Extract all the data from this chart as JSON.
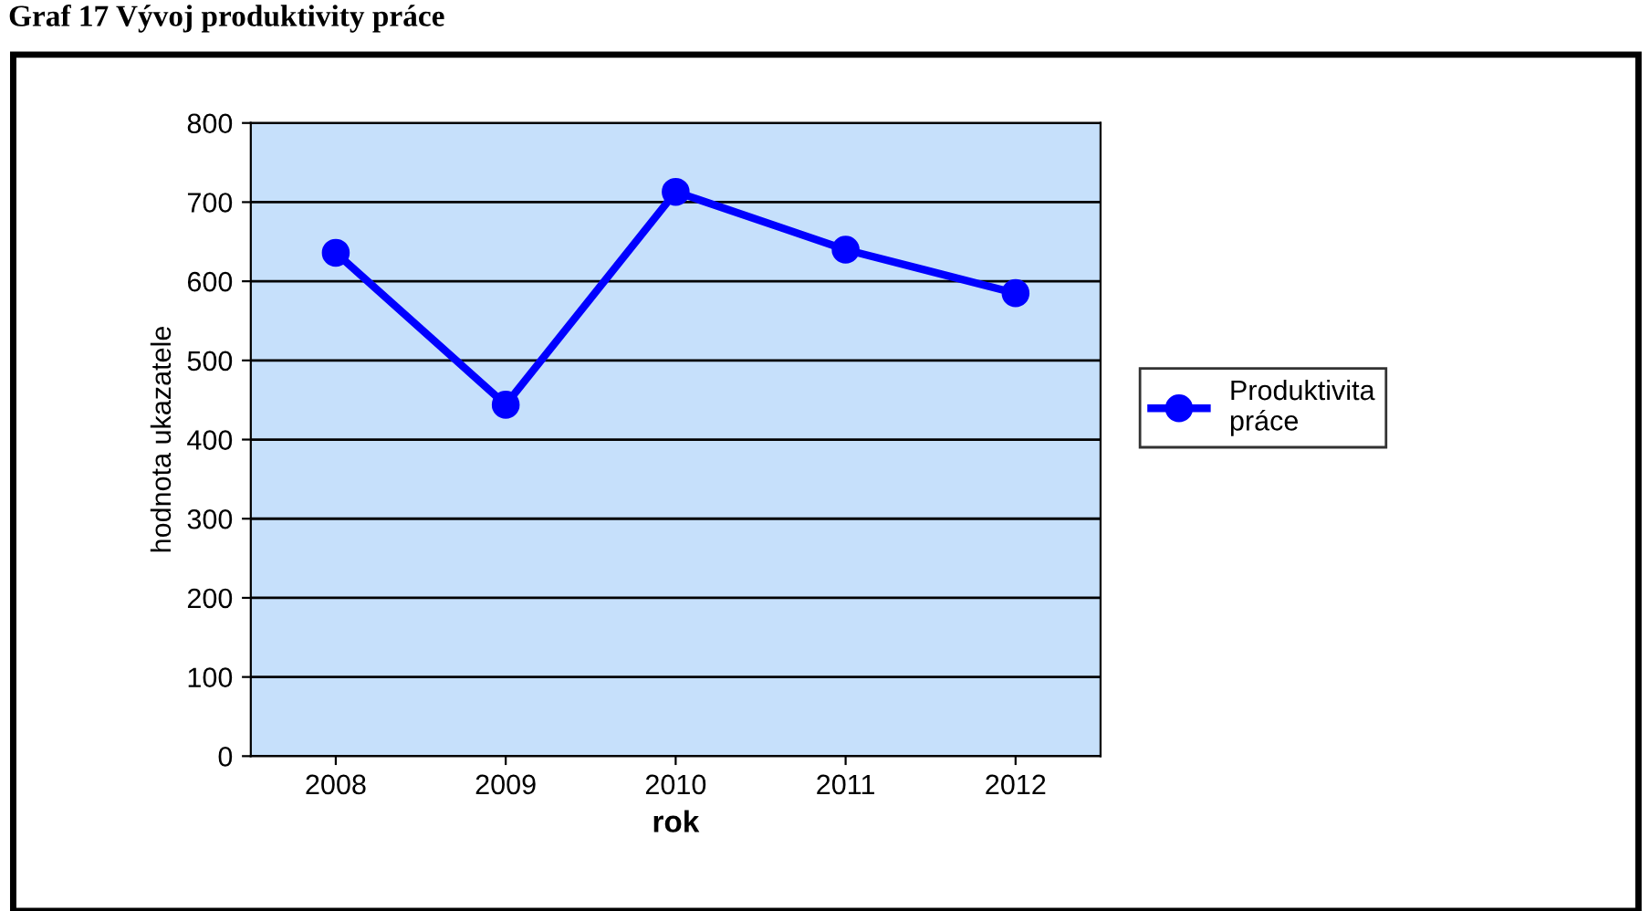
{
  "chart_data": {
    "type": "line",
    "title": "Graf 17 Vývoj produktivity práce",
    "xlabel": "rok",
    "ylabel": "hodnota ukazatele",
    "categories": [
      "2008",
      "2009",
      "2010",
      "2011",
      "2012"
    ],
    "series": [
      {
        "name": "Produktivita\npráce",
        "color": "#0000ff",
        "values": [
          636,
          444,
          713,
          640,
          585
        ]
      }
    ],
    "ylim": [
      0,
      800
    ],
    "yticks": [
      0,
      100,
      200,
      300,
      400,
      500,
      600,
      700,
      800
    ],
    "grid": "y",
    "legend": "right",
    "marker": "circle",
    "line_style": "solid"
  }
}
